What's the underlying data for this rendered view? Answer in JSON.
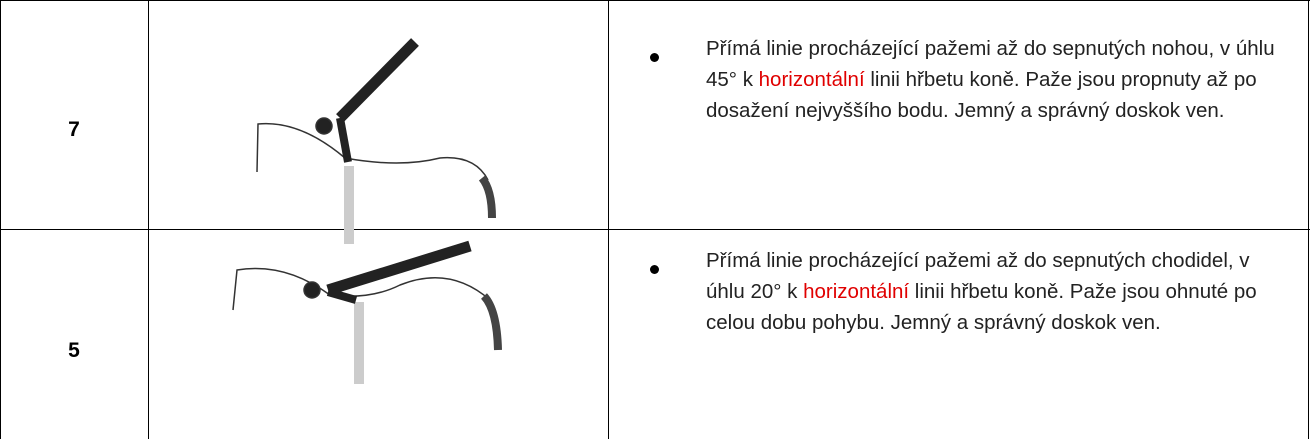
{
  "table": {
    "rows": [
      {
        "score": "7",
        "description": [
          "Přímá linie procházející pažemi až do sepnutých nohou, v úhlu 45° k ",
          "horizontální",
          " linii hřbetu koně. Paže jsou propnuty až po dosažení nejvyššího bodu. Jemný a správný doskok ven."
        ]
      },
      {
        "score": "5",
        "description": [
          "Přímá linie procházející pažemi až do sepnutých chodidel, v úhlu 20° k ",
          "horizontální",
          " linii hřbetu koně. Paže jsou ohnuté po celou dobu pohybu. Jemný a správný doskok ven."
        ]
      }
    ]
  }
}
